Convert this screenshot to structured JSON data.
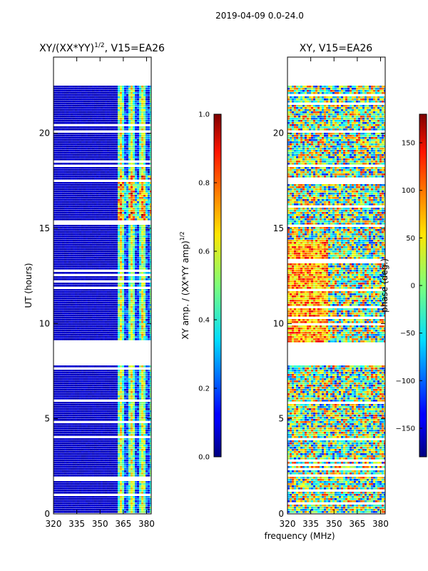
{
  "figure": {
    "suptitle": "2019-04-09 0.0-24.0",
    "xlabel": "frequency (MHz)"
  },
  "colormap": "jet",
  "chart_data": [
    {
      "type": "heatmap",
      "title": "XY/(XX*YY)",
      "title_sup": "1/2",
      "title_suffix": ", V15=EA26",
      "xlabel": "",
      "ylabel": "UT (hours)",
      "xlim": [
        320,
        383
      ],
      "ylim": [
        0,
        24
      ],
      "xticks": [
        320,
        335,
        350,
        365,
        380
      ],
      "yticks": [
        0,
        5,
        10,
        15,
        20
      ],
      "data_ranges_hours": [
        [
          0.1,
          7.8
        ],
        [
          9.0,
          22.5
        ]
      ],
      "bright_frequency_range_mhz": [
        361,
        383
      ],
      "colorbar": {
        "label": "XY amp. / (XX*YY amp)",
        "label_sup": "1/2",
        "range": [
          0.0,
          1.0
        ],
        "ticks": [
          "0.0",
          "0.2",
          "0.4",
          "0.6",
          "0.8",
          "1.0"
        ]
      }
    },
    {
      "type": "heatmap",
      "title": "XY, V15=EA26",
      "xlabel": "",
      "ylabel": "",
      "xlim": [
        320,
        383
      ],
      "ylim": [
        0,
        24
      ],
      "xticks": [
        320,
        335,
        350,
        365,
        380
      ],
      "yticks": [
        0,
        5,
        10,
        15,
        20
      ],
      "data_ranges_hours": [
        [
          0.1,
          7.8
        ],
        [
          9.0,
          22.5
        ]
      ],
      "colorbar": {
        "label": "phase (deg.)",
        "range": [
          -180,
          180
        ],
        "ticks": [
          "−150",
          "−100",
          "−50",
          "0",
          "50",
          "100",
          "150"
        ]
      }
    }
  ]
}
